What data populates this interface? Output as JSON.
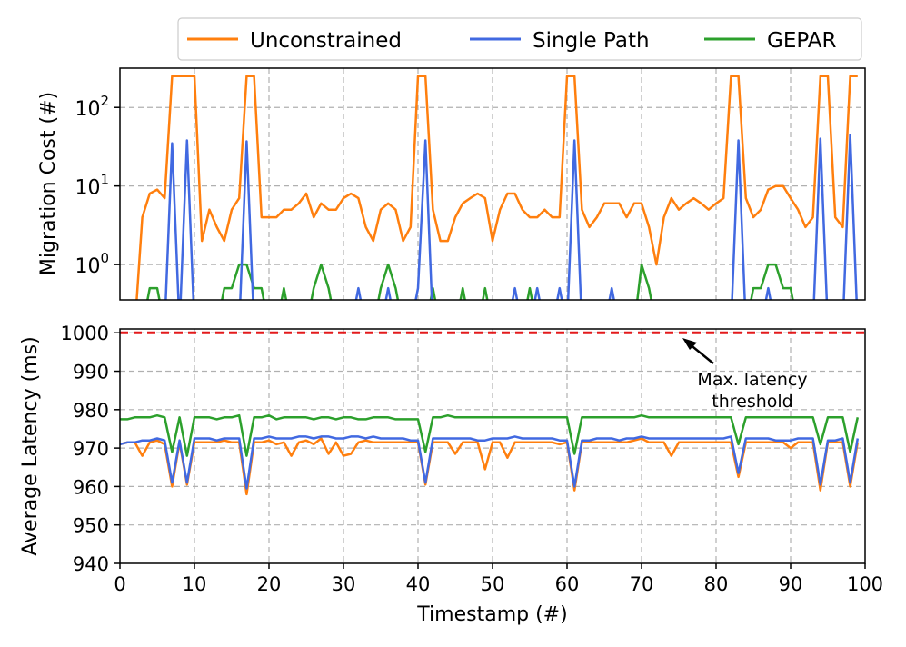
{
  "colors": {
    "unconstrained": "#ff7f0e",
    "single_path": "#4169e1",
    "gepar": "#2ca02c",
    "threshold": "#e31a1c",
    "grid": "#b0b0b0"
  },
  "legend": {
    "unconstrained": "Unconstrained",
    "single_path": "Single Path",
    "gepar": "GEPAR"
  },
  "chart_data": [
    {
      "type": "line",
      "scale": "log",
      "ylabel": "Migration Cost (#)",
      "xlim": [
        0,
        100
      ],
      "ylim_log10": [
        -0.45,
        2.5
      ],
      "yticks": [
        {
          "value": 100,
          "base": "10",
          "exp": "2"
        },
        {
          "value": 10,
          "base": "10",
          "exp": "1"
        },
        {
          "value": 1,
          "base": "10",
          "exp": "0"
        }
      ],
      "x": [
        0,
        1,
        2,
        3,
        4,
        5,
        6,
        7,
        8,
        9,
        10,
        11,
        12,
        13,
        14,
        15,
        16,
        17,
        18,
        19,
        20,
        21,
        22,
        23,
        24,
        25,
        26,
        27,
        28,
        29,
        30,
        31,
        32,
        33,
        34,
        35,
        36,
        37,
        38,
        39,
        40,
        41,
        42,
        43,
        44,
        45,
        46,
        47,
        48,
        49,
        50,
        51,
        52,
        53,
        54,
        55,
        56,
        57,
        58,
        59,
        60,
        61,
        62,
        63,
        64,
        65,
        66,
        67,
        68,
        69,
        70,
        71,
        72,
        73,
        74,
        75,
        76,
        77,
        78,
        79,
        80,
        81,
        82,
        83,
        84,
        85,
        86,
        87,
        88,
        89,
        90,
        91,
        92,
        93,
        94,
        95,
        96,
        97,
        98,
        99
      ],
      "series": [
        {
          "name": "Unconstrained",
          "key": "unconstrained",
          "values": [
            0,
            0,
            0,
            4,
            8,
            9,
            7,
            250,
            250,
            250,
            250,
            2,
            5,
            3,
            2,
            5,
            7,
            250,
            250,
            4,
            4,
            4,
            5,
            5,
            6,
            8,
            4,
            6,
            5,
            5,
            7,
            8,
            7,
            3,
            2,
            5,
            6,
            5,
            2,
            3,
            250,
            250,
            5,
            2,
            2,
            4,
            6,
            7,
            8,
            7,
            2,
            5,
            8,
            8,
            5,
            4,
            4,
            5,
            4,
            4,
            250,
            250,
            5,
            3,
            4,
            6,
            6,
            6,
            4,
            6,
            6,
            3,
            1,
            4,
            7,
            5,
            6,
            7,
            6,
            5,
            6,
            7,
            250,
            250,
            7,
            4,
            5,
            9,
            10,
            10,
            7,
            5,
            3,
            4,
            250,
            250,
            4,
            3,
            250,
            250
          ]
        },
        {
          "name": "Single Path",
          "key": "single_path",
          "values": [
            0,
            0,
            0,
            0,
            0,
            0,
            0,
            35,
            0,
            38,
            0,
            0,
            0,
            0,
            0,
            0,
            0,
            37,
            0,
            0,
            0,
            0,
            0,
            0,
            0,
            0,
            0,
            0,
            0,
            0,
            0,
            0,
            0.5,
            0,
            0,
            0,
            0.5,
            0,
            0,
            0,
            0.5,
            38,
            0,
            0,
            0,
            0,
            0,
            0,
            0,
            0,
            0,
            0,
            0,
            0.5,
            0,
            0,
            0.5,
            0,
            0,
            0.5,
            0,
            38,
            0,
            0,
            0,
            0,
            0.5,
            0,
            0,
            0,
            0,
            0,
            0,
            0,
            0,
            0,
            0,
            0,
            0,
            0,
            0,
            0,
            0,
            38,
            0,
            0,
            0,
            0.5,
            0,
            0,
            0,
            0,
            0,
            0,
            40,
            0,
            0,
            0,
            45,
            0
          ]
        },
        {
          "name": "GEPAR",
          "key": "gepar",
          "values": [
            0,
            0,
            0,
            0,
            0.5,
            0.5,
            0,
            0,
            0,
            0,
            0,
            0,
            0,
            0,
            0.5,
            0.5,
            1,
            1,
            0.5,
            0.5,
            0,
            0,
            0.5,
            0,
            0,
            0,
            0.5,
            1,
            0.5,
            0,
            0,
            0,
            0,
            0,
            0,
            0.5,
            1,
            0.5,
            0,
            0,
            0,
            0,
            0.5,
            0,
            0,
            0,
            0.5,
            0,
            0,
            0.5,
            0,
            0,
            0,
            0,
            0,
            0.5,
            0,
            0,
            0,
            0,
            0,
            0,
            0,
            0,
            0,
            0,
            0,
            0,
            0,
            0,
            1,
            0.5,
            0,
            0,
            0,
            0,
            0,
            0,
            0,
            0,
            0,
            0,
            0,
            0,
            0,
            0.5,
            0.5,
            1,
            1,
            0.5,
            0.5,
            0,
            0,
            0,
            0,
            0,
            0,
            0,
            0,
            0
          ]
        }
      ]
    },
    {
      "type": "line",
      "ylabel": "Average Latency (ms)",
      "xlabel": "Timestamp (#)",
      "xlim": [
        0,
        100
      ],
      "ylim": [
        940,
        1001
      ],
      "yticks": [
        1000,
        990,
        980,
        970,
        960,
        950,
        940
      ],
      "xticks": [
        0,
        10,
        20,
        30,
        40,
        50,
        60,
        70,
        80,
        90,
        100
      ],
      "threshold": {
        "value": 1000,
        "label_line1": "Max. latency",
        "label_line2": "threshold"
      },
      "x": [
        0,
        1,
        2,
        3,
        4,
        5,
        6,
        7,
        8,
        9,
        10,
        11,
        12,
        13,
        14,
        15,
        16,
        17,
        18,
        19,
        20,
        21,
        22,
        23,
        24,
        25,
        26,
        27,
        28,
        29,
        30,
        31,
        32,
        33,
        34,
        35,
        36,
        37,
        38,
        39,
        40,
        41,
        42,
        43,
        44,
        45,
        46,
        47,
        48,
        49,
        50,
        51,
        52,
        53,
        54,
        55,
        56,
        57,
        58,
        59,
        60,
        61,
        62,
        63,
        64,
        65,
        66,
        67,
        68,
        69,
        70,
        71,
        72,
        73,
        74,
        75,
        76,
        77,
        78,
        79,
        80,
        81,
        82,
        83,
        84,
        85,
        86,
        87,
        88,
        89,
        90,
        91,
        92,
        93,
        94,
        95,
        96,
        97,
        98,
        99
      ],
      "series": [
        {
          "name": "Unconstrained",
          "key": "unconstrained",
          "values": [
            971,
            971.5,
            971.5,
            968,
            971.5,
            972,
            971,
            960,
            971.5,
            960.5,
            971.5,
            971.5,
            971.5,
            971.5,
            972,
            971.5,
            971.5,
            958,
            971.5,
            971.5,
            972,
            971,
            971.5,
            968,
            971.5,
            972,
            971,
            972.5,
            968.5,
            971.5,
            968,
            968.5,
            971.5,
            972,
            971.5,
            971.5,
            971.5,
            971.5,
            971.5,
            971.5,
            971.5,
            960.5,
            971.5,
            971.5,
            971.5,
            968.5,
            971.5,
            971.5,
            971.5,
            964.5,
            971.5,
            971.5,
            967.5,
            971.5,
            971.5,
            971.5,
            971.5,
            971.5,
            971.5,
            971,
            971.5,
            959,
            971.5,
            971.5,
            971.5,
            971.5,
            971.5,
            971.5,
            971.5,
            972,
            972.5,
            971.5,
            971.5,
            971.5,
            968,
            971.5,
            971.5,
            971.5,
            971.5,
            971.5,
            971.5,
            971.5,
            971.5,
            962.5,
            971.5,
            971.5,
            971.5,
            971.5,
            971.5,
            971.5,
            970,
            971.5,
            971.5,
            971.5,
            959,
            971.5,
            971.5,
            971.5,
            960,
            971.5
          ]
        },
        {
          "name": "Single Path",
          "key": "single_path",
          "values": [
            971,
            971.5,
            971.5,
            972,
            972,
            972.5,
            972,
            961,
            972,
            961,
            972.5,
            972.5,
            972.5,
            972,
            972.5,
            972.5,
            972.5,
            959.5,
            972.5,
            972.5,
            973,
            972.5,
            972.5,
            972.5,
            973,
            973,
            972.5,
            973,
            973,
            972.5,
            972.5,
            973,
            973,
            972.5,
            973,
            972.5,
            972.5,
            972.5,
            972.5,
            972,
            972,
            961,
            972.5,
            972.5,
            972.5,
            972.5,
            972.5,
            972.5,
            972,
            972,
            972.5,
            972.5,
            972.5,
            973,
            972.5,
            972.5,
            972.5,
            972.5,
            972.5,
            972,
            972,
            960,
            972,
            972,
            972.5,
            972.5,
            972.5,
            972,
            972.5,
            972.5,
            973,
            972.5,
            972.5,
            972.5,
            972.5,
            972.5,
            972.5,
            972.5,
            972.5,
            972.5,
            972.5,
            972.5,
            973,
            963.5,
            972.5,
            972.5,
            972.5,
            972.5,
            972,
            972,
            972,
            972.5,
            972.5,
            972.5,
            960.5,
            972,
            972,
            972.5,
            961,
            972.5
          ]
        },
        {
          "name": "GEPAR",
          "key": "gepar",
          "values": [
            977.5,
            977.5,
            978,
            978,
            978,
            978.5,
            978,
            969,
            978,
            968,
            978,
            978,
            978,
            977.5,
            978,
            978,
            978.5,
            968,
            978,
            978,
            978.5,
            977.5,
            978,
            978,
            978,
            978,
            977.5,
            978,
            978,
            977.5,
            978,
            978,
            977.5,
            977.5,
            978,
            978,
            978,
            977.5,
            977.5,
            977.5,
            977.5,
            969,
            978,
            978,
            978.5,
            978,
            978,
            978,
            978,
            978,
            978,
            978,
            978,
            978,
            978,
            978,
            978,
            978,
            978,
            978,
            978,
            968.5,
            978,
            978,
            978,
            978,
            978,
            978,
            978,
            978,
            978.5,
            978,
            978,
            978,
            978,
            978,
            978,
            978,
            978,
            978,
            978,
            978,
            978,
            971,
            978,
            978,
            978,
            978,
            978,
            978,
            978,
            978,
            978,
            978,
            971,
            978,
            978,
            978,
            969,
            978
          ]
        }
      ]
    }
  ]
}
